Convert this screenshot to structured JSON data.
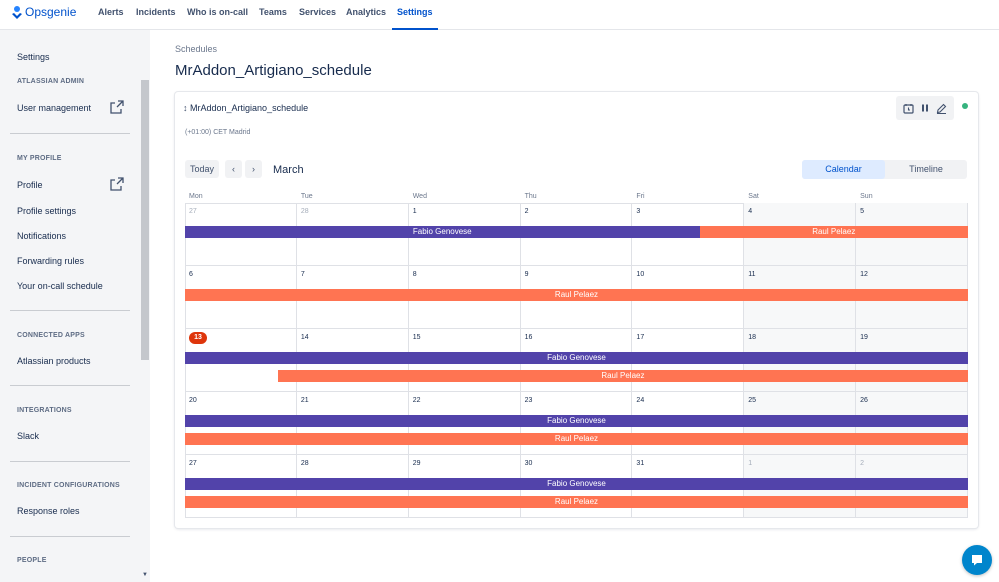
{
  "app": {
    "name": "Opsgenie"
  },
  "nav": {
    "items": [
      "Alerts",
      "Incidents",
      "Who is on-call",
      "Teams",
      "Services",
      "Analytics",
      "Settings"
    ]
  },
  "sidebar": {
    "settings": "Settings",
    "atlassian_admin": "ATLASSIAN ADMIN",
    "user_management": "User management",
    "my_profile": "MY PROFILE",
    "profile": "Profile",
    "profile_settings": "Profile settings",
    "notifications": "Notifications",
    "forwarding_rules": "Forwarding rules",
    "on_call_schedule": "Your on-call schedule",
    "connected_apps": "CONNECTED APPS",
    "atlassian_products": "Atlassian products",
    "integrations": "INTEGRATIONS",
    "slack": "Slack",
    "incident_configurations": "INCIDENT CONFIGURATIONS",
    "response_roles": "Response roles",
    "people": "PEOPLE"
  },
  "breadcrumb": "Schedules",
  "page_title": "MrAddon_Artigiano_schedule",
  "schedule": {
    "name": "MrAddon_Artigiano_schedule",
    "timezone": "(+01:00) CET Madrid",
    "status_color": "#36b37e"
  },
  "calendar": {
    "today_label": "Today",
    "prev_icon": "chevron-left-icon",
    "next_icon": "chevron-right-icon",
    "month": "March",
    "views": [
      "Calendar",
      "Timeline"
    ],
    "active_view": "Calendar",
    "weekdays": [
      "Mon",
      "Tue",
      "Wed",
      "Thu",
      "Fri",
      "Sat",
      "Sun"
    ],
    "weeks": [
      {
        "days": [
          "27",
          "28",
          "1",
          "2",
          "3",
          "4",
          "5"
        ],
        "muted": [
          true,
          true,
          false,
          false,
          false,
          false,
          false
        ]
      },
      {
        "days": [
          "6",
          "7",
          "8",
          "9",
          "10",
          "11",
          "12"
        ],
        "muted": [
          false,
          false,
          false,
          false,
          false,
          false,
          false
        ]
      },
      {
        "days": [
          "13",
          "14",
          "15",
          "16",
          "17",
          "18",
          "19"
        ],
        "muted": [
          false,
          false,
          false,
          false,
          false,
          false,
          false
        ]
      },
      {
        "days": [
          "20",
          "21",
          "22",
          "23",
          "24",
          "25",
          "26"
        ],
        "muted": [
          false,
          false,
          false,
          false,
          false,
          false,
          false
        ]
      },
      {
        "days": [
          "27",
          "28",
          "29",
          "30",
          "31",
          "1",
          "2"
        ],
        "muted": [
          false,
          false,
          false,
          false,
          false,
          true,
          true
        ]
      }
    ],
    "today": "13",
    "participants": {
      "fabio": {
        "name": "Fabio Genovese",
        "color": "#5243aa"
      },
      "raul": {
        "name": "Raul Pelaez",
        "color": "#ff7452"
      }
    },
    "shifts": [
      {
        "who": "fabio",
        "week": 0,
        "lane": 0,
        "from": 0,
        "to": 4.6
      },
      {
        "who": "raul",
        "week": 0,
        "lane": 0,
        "from": 4.6,
        "to": 7
      },
      {
        "who": "raul",
        "week": 1,
        "lane": 0,
        "from": 0,
        "to": 7
      },
      {
        "who": "fabio",
        "week": 2,
        "lane": 0,
        "from": 0,
        "to": 7
      },
      {
        "who": "raul",
        "week": 2,
        "lane": 1,
        "from": 0.83,
        "to": 7
      },
      {
        "who": "fabio",
        "week": 3,
        "lane": 0,
        "from": 0,
        "to": 7
      },
      {
        "who": "raul",
        "week": 3,
        "lane": 1,
        "from": 0,
        "to": 7
      },
      {
        "who": "fabio",
        "week": 4,
        "lane": 0,
        "from": 0,
        "to": 7
      },
      {
        "who": "raul",
        "week": 4,
        "lane": 1,
        "from": 0,
        "to": 7
      }
    ]
  },
  "help_icon": "chat-bubble-icon"
}
